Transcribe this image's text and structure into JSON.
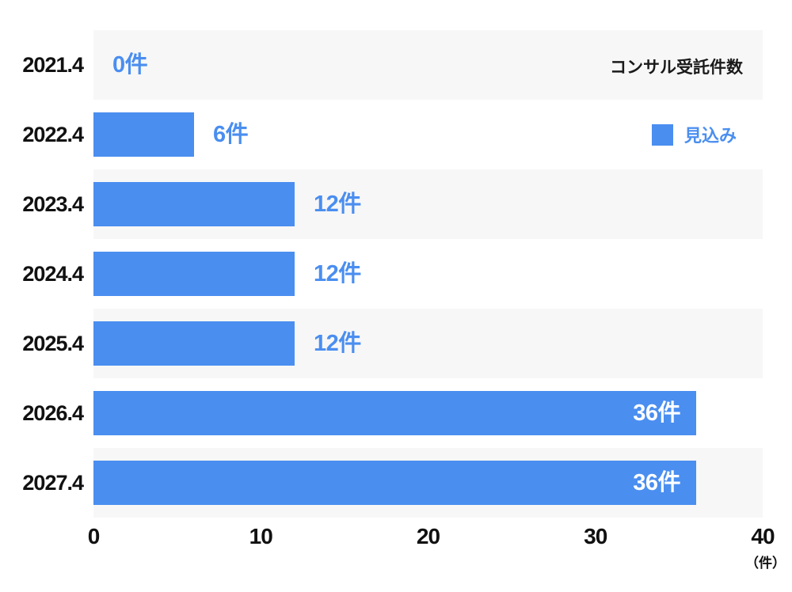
{
  "chart_data": {
    "type": "bar",
    "orientation": "horizontal",
    "title": "コンサル受託件数",
    "categories": [
      "2021.4",
      "2022.4",
      "2023.4",
      "2024.4",
      "2025.4",
      "2026.4",
      "2027.4"
    ],
    "values": [
      0,
      6,
      12,
      12,
      12,
      36,
      36
    ],
    "value_labels": [
      "0件",
      "6件",
      "12件",
      "12件",
      "12件",
      "36件",
      "36件"
    ],
    "value_label_positions": [
      "outside",
      "outside",
      "outside",
      "outside",
      "outside",
      "inside",
      "inside"
    ],
    "legend": {
      "label": "見込み",
      "position": "top-right-inside"
    },
    "x_ticks": [
      "0",
      "10",
      "20",
      "30",
      "40"
    ],
    "xlim": [
      0,
      40
    ],
    "x_axis_unit": "（件）",
    "grid": false,
    "colors": {
      "bar": "#4a8ef0",
      "value_label_outside": "#4a8ef0",
      "value_label_inside": "#ffffff",
      "row_band_odd": "#f7f7f7",
      "row_band_even": "#ffffff",
      "axis_text": "#111111",
      "title_text": "#1a1a1a"
    }
  }
}
